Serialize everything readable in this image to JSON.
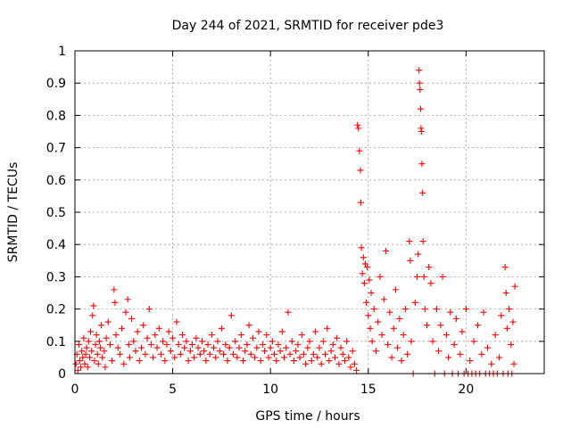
{
  "chart_data": {
    "type": "scatter",
    "title": "Day 244 of 2021, SRMTID for receiver pde3",
    "xlabel": "GPS time / hours",
    "ylabel": "SRMTID / TECUs",
    "xlim": [
      0,
      24
    ],
    "ylim": [
      0,
      1
    ],
    "xticks": [
      0,
      5,
      10,
      15,
      20
    ],
    "xtick_labels": [
      "0",
      "5",
      "10",
      "15",
      "20"
    ],
    "yticks": [
      0,
      0.1,
      0.2,
      0.3,
      0.4,
      0.5,
      0.6,
      0.7,
      0.8,
      0.9,
      1
    ],
    "ytick_labels": [
      "0",
      "0.1",
      "0.2",
      "0.3",
      "0.4",
      "0.5",
      "0.6",
      "0.7",
      "0.8",
      "0.9",
      "1"
    ],
    "grid": true,
    "marker": "+",
    "series": [
      {
        "name": "SRMTID",
        "color": "#ff0000",
        "points": [
          [
            0.05,
            0.03
          ],
          [
            0.1,
            0.06
          ],
          [
            0.15,
            0.01
          ],
          [
            0.2,
            0.09
          ],
          [
            0.25,
            0.04
          ],
          [
            0.3,
            0.02
          ],
          [
            0.35,
            0.07
          ],
          [
            0.4,
            0.05
          ],
          [
            0.45,
            0.11
          ],
          [
            0.5,
            0.03
          ],
          [
            0.55,
            0.06
          ],
          [
            0.6,
            0.08
          ],
          [
            0.65,
            0.02
          ],
          [
            0.7,
            0.1
          ],
          [
            0.75,
            0.05
          ],
          [
            0.8,
            0.13
          ],
          [
            0.85,
            0.07
          ],
          [
            0.9,
            0.18
          ],
          [
            0.95,
            0.21
          ],
          [
            1.0,
            0.04
          ],
          [
            1.05,
            0.09
          ],
          [
            1.1,
            0.12
          ],
          [
            1.15,
            0.06
          ],
          [
            1.2,
            0.03
          ],
          [
            1.25,
            0.1
          ],
          [
            1.3,
            0.08
          ],
          [
            1.35,
            0.15
          ],
          [
            1.4,
            0.05
          ],
          [
            1.5,
            0.07
          ],
          [
            1.55,
            0.02
          ],
          [
            1.6,
            0.11
          ],
          [
            1.7,
            0.16
          ],
          [
            1.8,
            0.09
          ],
          [
            1.9,
            0.04
          ],
          [
            2.0,
            0.26
          ],
          [
            2.05,
            0.22
          ],
          [
            2.1,
            0.12
          ],
          [
            2.2,
            0.08
          ],
          [
            2.3,
            0.06
          ],
          [
            2.4,
            0.14
          ],
          [
            2.5,
            0.03
          ],
          [
            2.6,
            0.19
          ],
          [
            2.7,
            0.23
          ],
          [
            2.75,
            0.09
          ],
          [
            2.8,
            0.05
          ],
          [
            2.9,
            0.17
          ],
          [
            3.0,
            0.1
          ],
          [
            3.1,
            0.07
          ],
          [
            3.2,
            0.13
          ],
          [
            3.3,
            0.04
          ],
          [
            3.4,
            0.08
          ],
          [
            3.5,
            0.15
          ],
          [
            3.6,
            0.06
          ],
          [
            3.7,
            0.11
          ],
          [
            3.8,
            0.2
          ],
          [
            3.9,
            0.09
          ],
          [
            4.0,
            0.05
          ],
          [
            4.1,
            0.12
          ],
          [
            4.2,
            0.08
          ],
          [
            4.3,
            0.14
          ],
          [
            4.4,
            0.06
          ],
          [
            4.5,
            0.1
          ],
          [
            4.6,
            0.04
          ],
          [
            4.7,
            0.09
          ],
          [
            4.8,
            0.13
          ],
          [
            4.9,
            0.07
          ],
          [
            5.0,
            0.11
          ],
          [
            5.1,
            0.05
          ],
          [
            5.2,
            0.16
          ],
          [
            5.3,
            0.09
          ],
          [
            5.4,
            0.06
          ],
          [
            5.5,
            0.12
          ],
          [
            5.6,
            0.08
          ],
          [
            5.7,
            0.1
          ],
          [
            5.8,
            0.04
          ],
          [
            5.9,
            0.07
          ],
          [
            6.0,
            0.09
          ],
          [
            6.1,
            0.05
          ],
          [
            6.2,
            0.11
          ],
          [
            6.3,
            0.08
          ],
          [
            6.4,
            0.06
          ],
          [
            6.5,
            0.1
          ],
          [
            6.6,
            0.07
          ],
          [
            6.7,
            0.04
          ],
          [
            6.8,
            0.09
          ],
          [
            6.9,
            0.06
          ],
          [
            7.0,
            0.12
          ],
          [
            7.1,
            0.08
          ],
          [
            7.2,
            0.05
          ],
          [
            7.3,
            0.1
          ],
          [
            7.4,
            0.07
          ],
          [
            7.5,
            0.14
          ],
          [
            7.6,
            0.06
          ],
          [
            7.7,
            0.09
          ],
          [
            7.8,
            0.04
          ],
          [
            7.9,
            0.08
          ],
          [
            8.0,
            0.18
          ],
          [
            8.1,
            0.06
          ],
          [
            8.2,
            0.1
          ],
          [
            8.3,
            0.05
          ],
          [
            8.4,
            0.08
          ],
          [
            8.5,
            0.12
          ],
          [
            8.6,
            0.04
          ],
          [
            8.7,
            0.07
          ],
          [
            8.8,
            0.09
          ],
          [
            8.9,
            0.15
          ],
          [
            9.0,
            0.06
          ],
          [
            9.1,
            0.11
          ],
          [
            9.2,
            0.05
          ],
          [
            9.3,
            0.08
          ],
          [
            9.4,
            0.13
          ],
          [
            9.5,
            0.04
          ],
          [
            9.6,
            0.09
          ],
          [
            9.7,
            0.07
          ],
          [
            9.8,
            0.12
          ],
          [
            9.9,
            0.05
          ],
          [
            10.0,
            0.08
          ],
          [
            10.1,
            0.1
          ],
          [
            10.2,
            0.06
          ],
          [
            10.3,
            0.04
          ],
          [
            10.4,
            0.09
          ],
          [
            10.5,
            0.07
          ],
          [
            10.6,
            0.13
          ],
          [
            10.7,
            0.05
          ],
          [
            10.8,
            0.08
          ],
          [
            10.9,
            0.19
          ],
          [
            11.0,
            0.06
          ],
          [
            11.1,
            0.1
          ],
          [
            11.2,
            0.04
          ],
          [
            11.3,
            0.07
          ],
          [
            11.4,
            0.09
          ],
          [
            11.5,
            0.05
          ],
          [
            11.6,
            0.12
          ],
          [
            11.7,
            0.06
          ],
          [
            11.8,
            0.03
          ],
          [
            11.9,
            0.08
          ],
          [
            12.0,
            0.1
          ],
          [
            12.1,
            0.04
          ],
          [
            12.2,
            0.06
          ],
          [
            12.3,
            0.13
          ],
          [
            12.4,
            0.05
          ],
          [
            12.5,
            0.08
          ],
          [
            12.6,
            0.03
          ],
          [
            12.7,
            0.1
          ],
          [
            12.8,
            0.06
          ],
          [
            12.9,
            0.14
          ],
          [
            13.0,
            0.04
          ],
          [
            13.1,
            0.07
          ],
          [
            13.2,
            0.09
          ],
          [
            13.3,
            0.05
          ],
          [
            13.4,
            0.11
          ],
          [
            13.5,
            0.03
          ],
          [
            13.6,
            0.08
          ],
          [
            13.7,
            0.06
          ],
          [
            13.8,
            0.04
          ],
          [
            13.9,
            0.1
          ],
          [
            14.0,
            0.05
          ],
          [
            14.1,
            0.02
          ],
          [
            14.2,
            0.07
          ],
          [
            14.3,
            0.03
          ],
          [
            14.4,
            0.01
          ],
          [
            14.45,
            0.77
          ],
          [
            14.5,
            0.76
          ],
          [
            14.55,
            0.69
          ],
          [
            14.6,
            0.63
          ],
          [
            14.62,
            0.53
          ],
          [
            14.65,
            0.39
          ],
          [
            14.7,
            0.31
          ],
          [
            14.75,
            0.36
          ],
          [
            14.8,
            0.28
          ],
          [
            14.85,
            0.34
          ],
          [
            14.9,
            0.22
          ],
          [
            14.95,
            0.33
          ],
          [
            15.0,
            0.18
          ],
          [
            15.05,
            0.29
          ],
          [
            15.1,
            0.14
          ],
          [
            15.15,
            0.25
          ],
          [
            15.2,
            0.1
          ],
          [
            15.3,
            0.2
          ],
          [
            15.4,
            0.07
          ],
          [
            15.5,
            0.16
          ],
          [
            15.6,
            0.3
          ],
          [
            15.7,
            0.12
          ],
          [
            15.8,
            0.23
          ],
          [
            15.9,
            0.38
          ],
          [
            16.0,
            0.09
          ],
          [
            16.1,
            0.19
          ],
          [
            16.2,
            0.05
          ],
          [
            16.3,
            0.14
          ],
          [
            16.4,
            0.26
          ],
          [
            16.5,
            0.08
          ],
          [
            16.6,
            0.17
          ],
          [
            16.7,
            0.04
          ],
          [
            16.8,
            0.12
          ],
          [
            16.9,
            0.2
          ],
          [
            17.0,
            0.06
          ],
          [
            17.1,
            0.41
          ],
          [
            17.15,
            0.35
          ],
          [
            17.2,
            0.1
          ],
          [
            17.3,
            0.0
          ],
          [
            17.4,
            0.22
          ],
          [
            17.5,
            0.3
          ],
          [
            17.55,
            0.37
          ],
          [
            17.6,
            0.94
          ],
          [
            17.62,
            0.9
          ],
          [
            17.65,
            0.88
          ],
          [
            17.68,
            0.82
          ],
          [
            17.7,
            0.76
          ],
          [
            17.72,
            0.75
          ],
          [
            17.75,
            0.65
          ],
          [
            17.78,
            0.56
          ],
          [
            17.8,
            0.41
          ],
          [
            17.85,
            0.3
          ],
          [
            17.9,
            0.2
          ],
          [
            18.0,
            0.15
          ],
          [
            18.1,
            0.33
          ],
          [
            18.2,
            0.28
          ],
          [
            18.3,
            0.1
          ],
          [
            18.4,
            0.0
          ],
          [
            18.5,
            0.2
          ],
          [
            18.6,
            0.07
          ],
          [
            18.7,
            0.15
          ],
          [
            18.8,
            0.3
          ],
          [
            18.9,
            0.0
          ],
          [
            19.0,
            0.12
          ],
          [
            19.1,
            0.05
          ],
          [
            19.2,
            0.19
          ],
          [
            19.3,
            0.0
          ],
          [
            19.4,
            0.09
          ],
          [
            19.5,
            0.17
          ],
          [
            19.6,
            0.0
          ],
          [
            19.7,
            0.06
          ],
          [
            19.8,
            0.13
          ],
          [
            19.9,
            0.0
          ],
          [
            20.0,
            0.2
          ],
          [
            20.1,
            0.0
          ],
          [
            20.2,
            0.04
          ],
          [
            20.3,
            0.0
          ],
          [
            20.4,
            0.1
          ],
          [
            20.5,
            0.0
          ],
          [
            20.6,
            0.15
          ],
          [
            20.7,
            0.0
          ],
          [
            20.8,
            0.06
          ],
          [
            20.9,
            0.19
          ],
          [
            21.0,
            0.0
          ],
          [
            21.1,
            0.08
          ],
          [
            21.2,
            0.0
          ],
          [
            21.3,
            0.03
          ],
          [
            21.4,
            0.0
          ],
          [
            21.5,
            0.12
          ],
          [
            21.6,
            0.0
          ],
          [
            21.7,
            0.05
          ],
          [
            21.8,
            0.18
          ],
          [
            21.9,
            0.0
          ],
          [
            22.0,
            0.33
          ],
          [
            22.05,
            0.25
          ],
          [
            22.1,
            0.14
          ],
          [
            22.15,
            0.0
          ],
          [
            22.2,
            0.2
          ],
          [
            22.3,
            0.09
          ],
          [
            22.35,
            0.0
          ],
          [
            22.4,
            0.16
          ],
          [
            22.45,
            0.03
          ],
          [
            22.5,
            0.27
          ]
        ]
      }
    ]
  }
}
